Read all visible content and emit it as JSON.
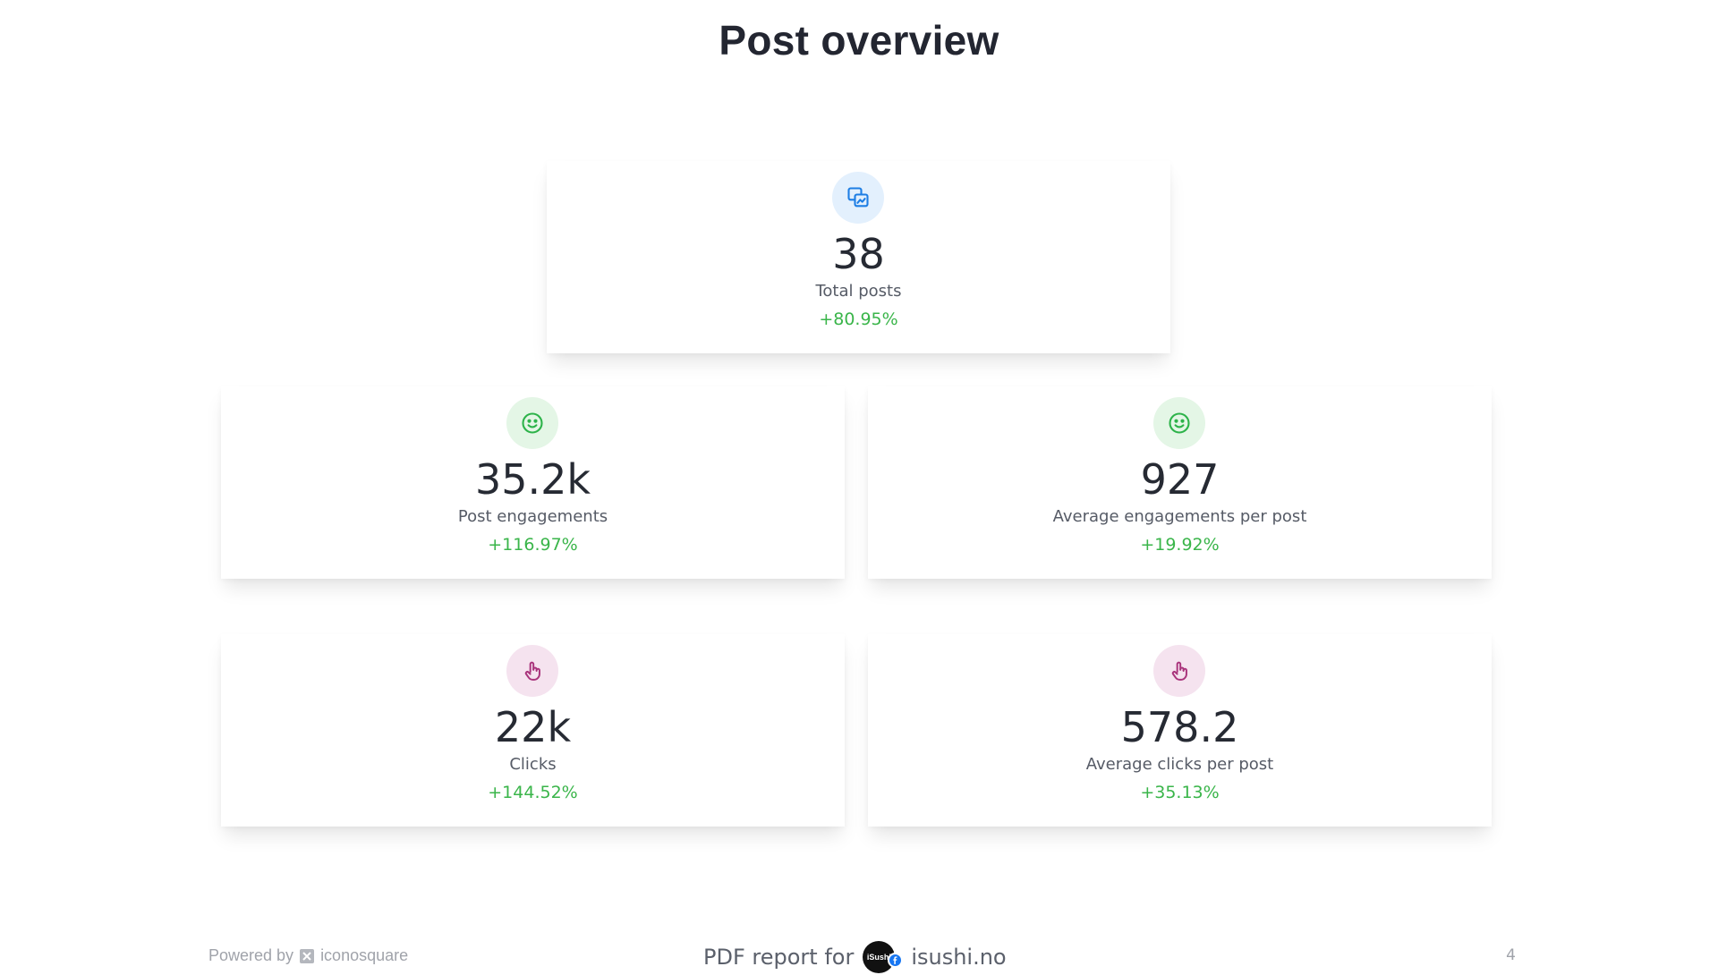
{
  "page": {
    "title": "Post overview",
    "page_number": "4"
  },
  "metrics": {
    "total_posts": {
      "icon": "posts-icon",
      "value": "38",
      "label": "Total posts",
      "change": "+80.95%",
      "icon_color": "#1e7ee4"
    },
    "post_engagements": {
      "icon": "smiley-icon",
      "value": "35.2k",
      "label": "Post engagements",
      "change": "+116.97%",
      "icon_color": "#2db34a"
    },
    "avg_engagements": {
      "icon": "smiley-icon",
      "value": "927",
      "label": "Average engagements per post",
      "change": "+19.92%",
      "icon_color": "#2db34a"
    },
    "clicks": {
      "icon": "tap-hand-icon",
      "value": "22k",
      "label": "Clicks",
      "change": "+144.52%",
      "icon_color": "#a9347c"
    },
    "avg_clicks": {
      "icon": "tap-hand-icon",
      "value": "578.2",
      "label": "Average clicks per post",
      "change": "+35.13%",
      "icon_color": "#a9347c"
    }
  },
  "footer": {
    "powered_by": "Powered by",
    "brand": "iconosquare",
    "report_for": "PDF report for",
    "avatar_text": "iSushi",
    "account": "isushi.no"
  },
  "colors": {
    "positive_change": "#3ab54a",
    "title": "#232631",
    "facebook": "#1877f2"
  }
}
